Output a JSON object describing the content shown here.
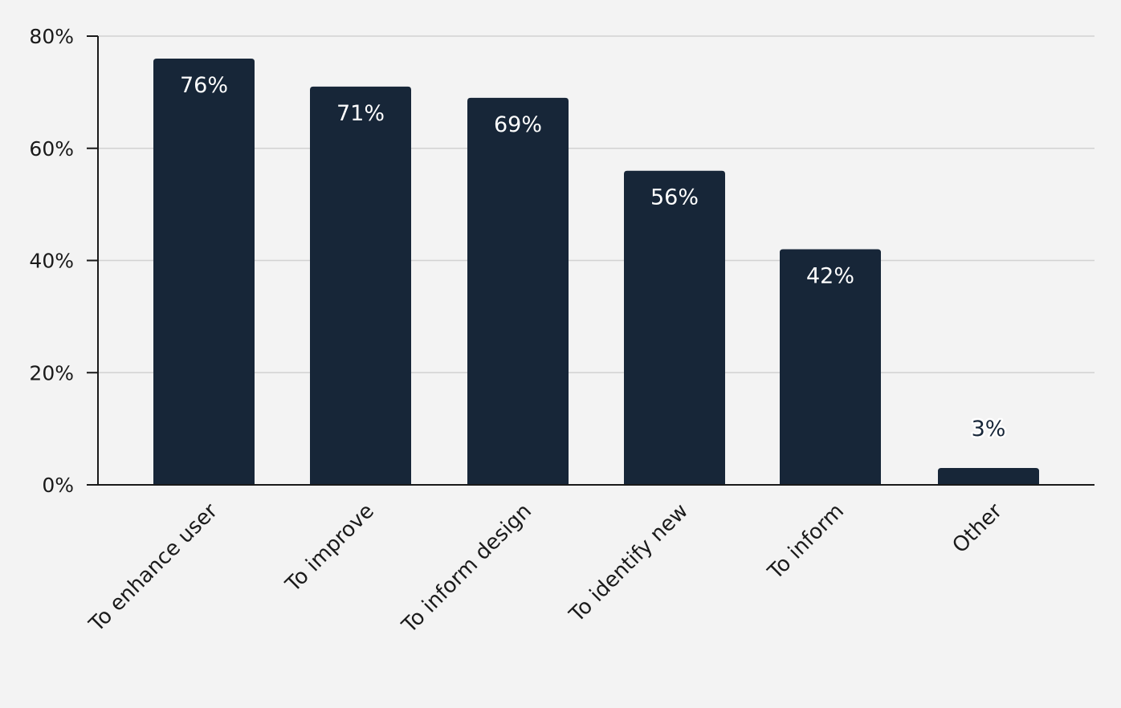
{
  "chart_data": {
    "type": "bar",
    "title": "",
    "xlabel": "",
    "ylabel": "",
    "categories": [
      "To enhance user",
      "To improve",
      "To inform design",
      "To identify new",
      "To inform",
      "Other"
    ],
    "values": [
      76,
      71,
      69,
      56,
      42,
      3
    ],
    "data_labels": [
      "76%",
      "71%",
      "69%",
      "56%",
      "42%",
      "3%"
    ],
    "ylim": [
      0,
      80
    ],
    "yticks": [
      0,
      20,
      40,
      60,
      80
    ],
    "ytick_labels": [
      "0%",
      "20%",
      "40%",
      "60%",
      "80%"
    ],
    "grid": true,
    "legend": "none",
    "bar_color": "#172638",
    "label_inside_color": "#ffffff",
    "label_outside_color": "#172638",
    "background": "#f3f3f3"
  }
}
